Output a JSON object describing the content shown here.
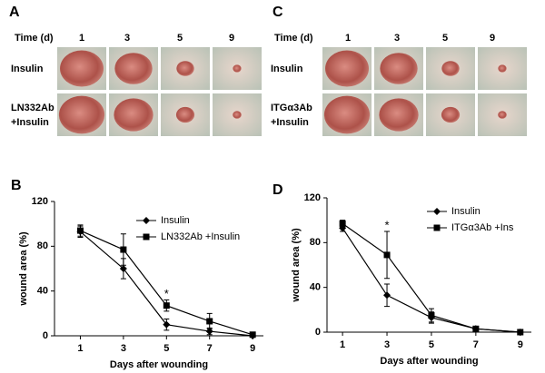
{
  "panels": [
    {
      "label": "A",
      "time_label": "Time (d)",
      "days": [
        "1",
        "3",
        "5",
        "9"
      ],
      "rows": [
        [
          "Insulin"
        ],
        [
          "LN332Ab",
          "+Insulin"
        ]
      ]
    },
    {
      "label": "C",
      "time_label": "Time (d)",
      "days": [
        "1",
        "3",
        "5",
        "9"
      ],
      "rows": [
        [
          "Insulin"
        ],
        [
          "ITGα3Ab",
          "+Insulin"
        ]
      ]
    }
  ],
  "chart_data": [
    {
      "type": "line",
      "label": "B",
      "xlabel": "Days after wounding",
      "ylabel": "wound area (%)",
      "x": [
        1,
        3,
        5,
        7,
        9
      ],
      "xlim": [
        -0.2,
        9.5
      ],
      "xticks": [
        1,
        3,
        5,
        7,
        9
      ],
      "ylim": [
        0,
        120
      ],
      "yticks": [
        0,
        40,
        80,
        120
      ],
      "series": [
        {
          "name": "Insulin",
          "color": "#000000",
          "marker": "diamond",
          "values": [
            93,
            60,
            10,
            4,
            0
          ],
          "errors": [
            5,
            9,
            5,
            3,
            0
          ]
        },
        {
          "name": "LN332Ab +Insulin",
          "color": "#000000",
          "marker": "square",
          "values": [
            94,
            77,
            27,
            13,
            1
          ],
          "errors": [
            5,
            14,
            5,
            7,
            0
          ]
        }
      ],
      "annotations": [
        {
          "text": "*",
          "x": 5
        }
      ]
    },
    {
      "type": "line",
      "label": "D",
      "xlabel": "Days after wounding",
      "ylabel": "wound area (%)",
      "x": [
        1,
        3,
        5,
        7,
        9
      ],
      "xlim": [
        0.3,
        9.5
      ],
      "xticks": [
        1,
        3,
        5,
        7,
        9
      ],
      "ylim": [
        0,
        120
      ],
      "yticks": [
        0,
        40,
        80,
        120
      ],
      "series": [
        {
          "name": "Insulin",
          "color": "#000000",
          "marker": "diamond",
          "values": [
            93,
            33,
            13,
            3,
            0
          ],
          "errors": [
            3,
            10,
            5,
            2,
            0
          ]
        },
        {
          "name": "ITGα3Ab +Ins",
          "color": "#000000",
          "marker": "square",
          "values": [
            97,
            69,
            15,
            3,
            0
          ],
          "errors": [
            3,
            21,
            6,
            2,
            0
          ]
        }
      ],
      "annotations": [
        {
          "text": "*",
          "x": 3
        }
      ]
    }
  ]
}
